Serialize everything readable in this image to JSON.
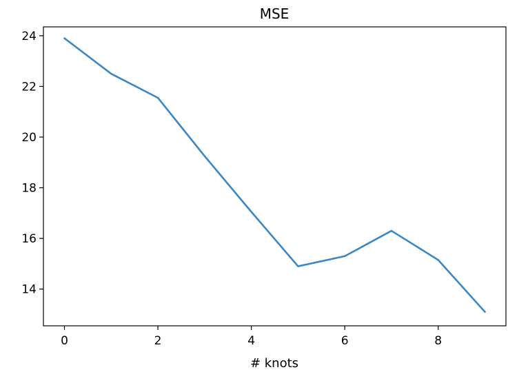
{
  "chart_data": {
    "type": "line",
    "title": "MSE",
    "xlabel": "# knots",
    "ylabel": "",
    "x": [
      0,
      1,
      2,
      3,
      4,
      5,
      6,
      7,
      8,
      9
    ],
    "series": [
      {
        "values": [
          23.9,
          22.5,
          21.55,
          19.25,
          17.05,
          14.9,
          15.3,
          16.3,
          15.15,
          13.1
        ],
        "color": "#3b86c4"
      }
    ],
    "xlim": [
      -0.45,
      9.45
    ],
    "ylim": [
      12.55,
      24.35
    ],
    "xticks": [
      0,
      2,
      4,
      6,
      8
    ],
    "yticks": [
      14,
      16,
      18,
      20,
      22,
      24
    ],
    "grid": false,
    "legend": false
  }
}
